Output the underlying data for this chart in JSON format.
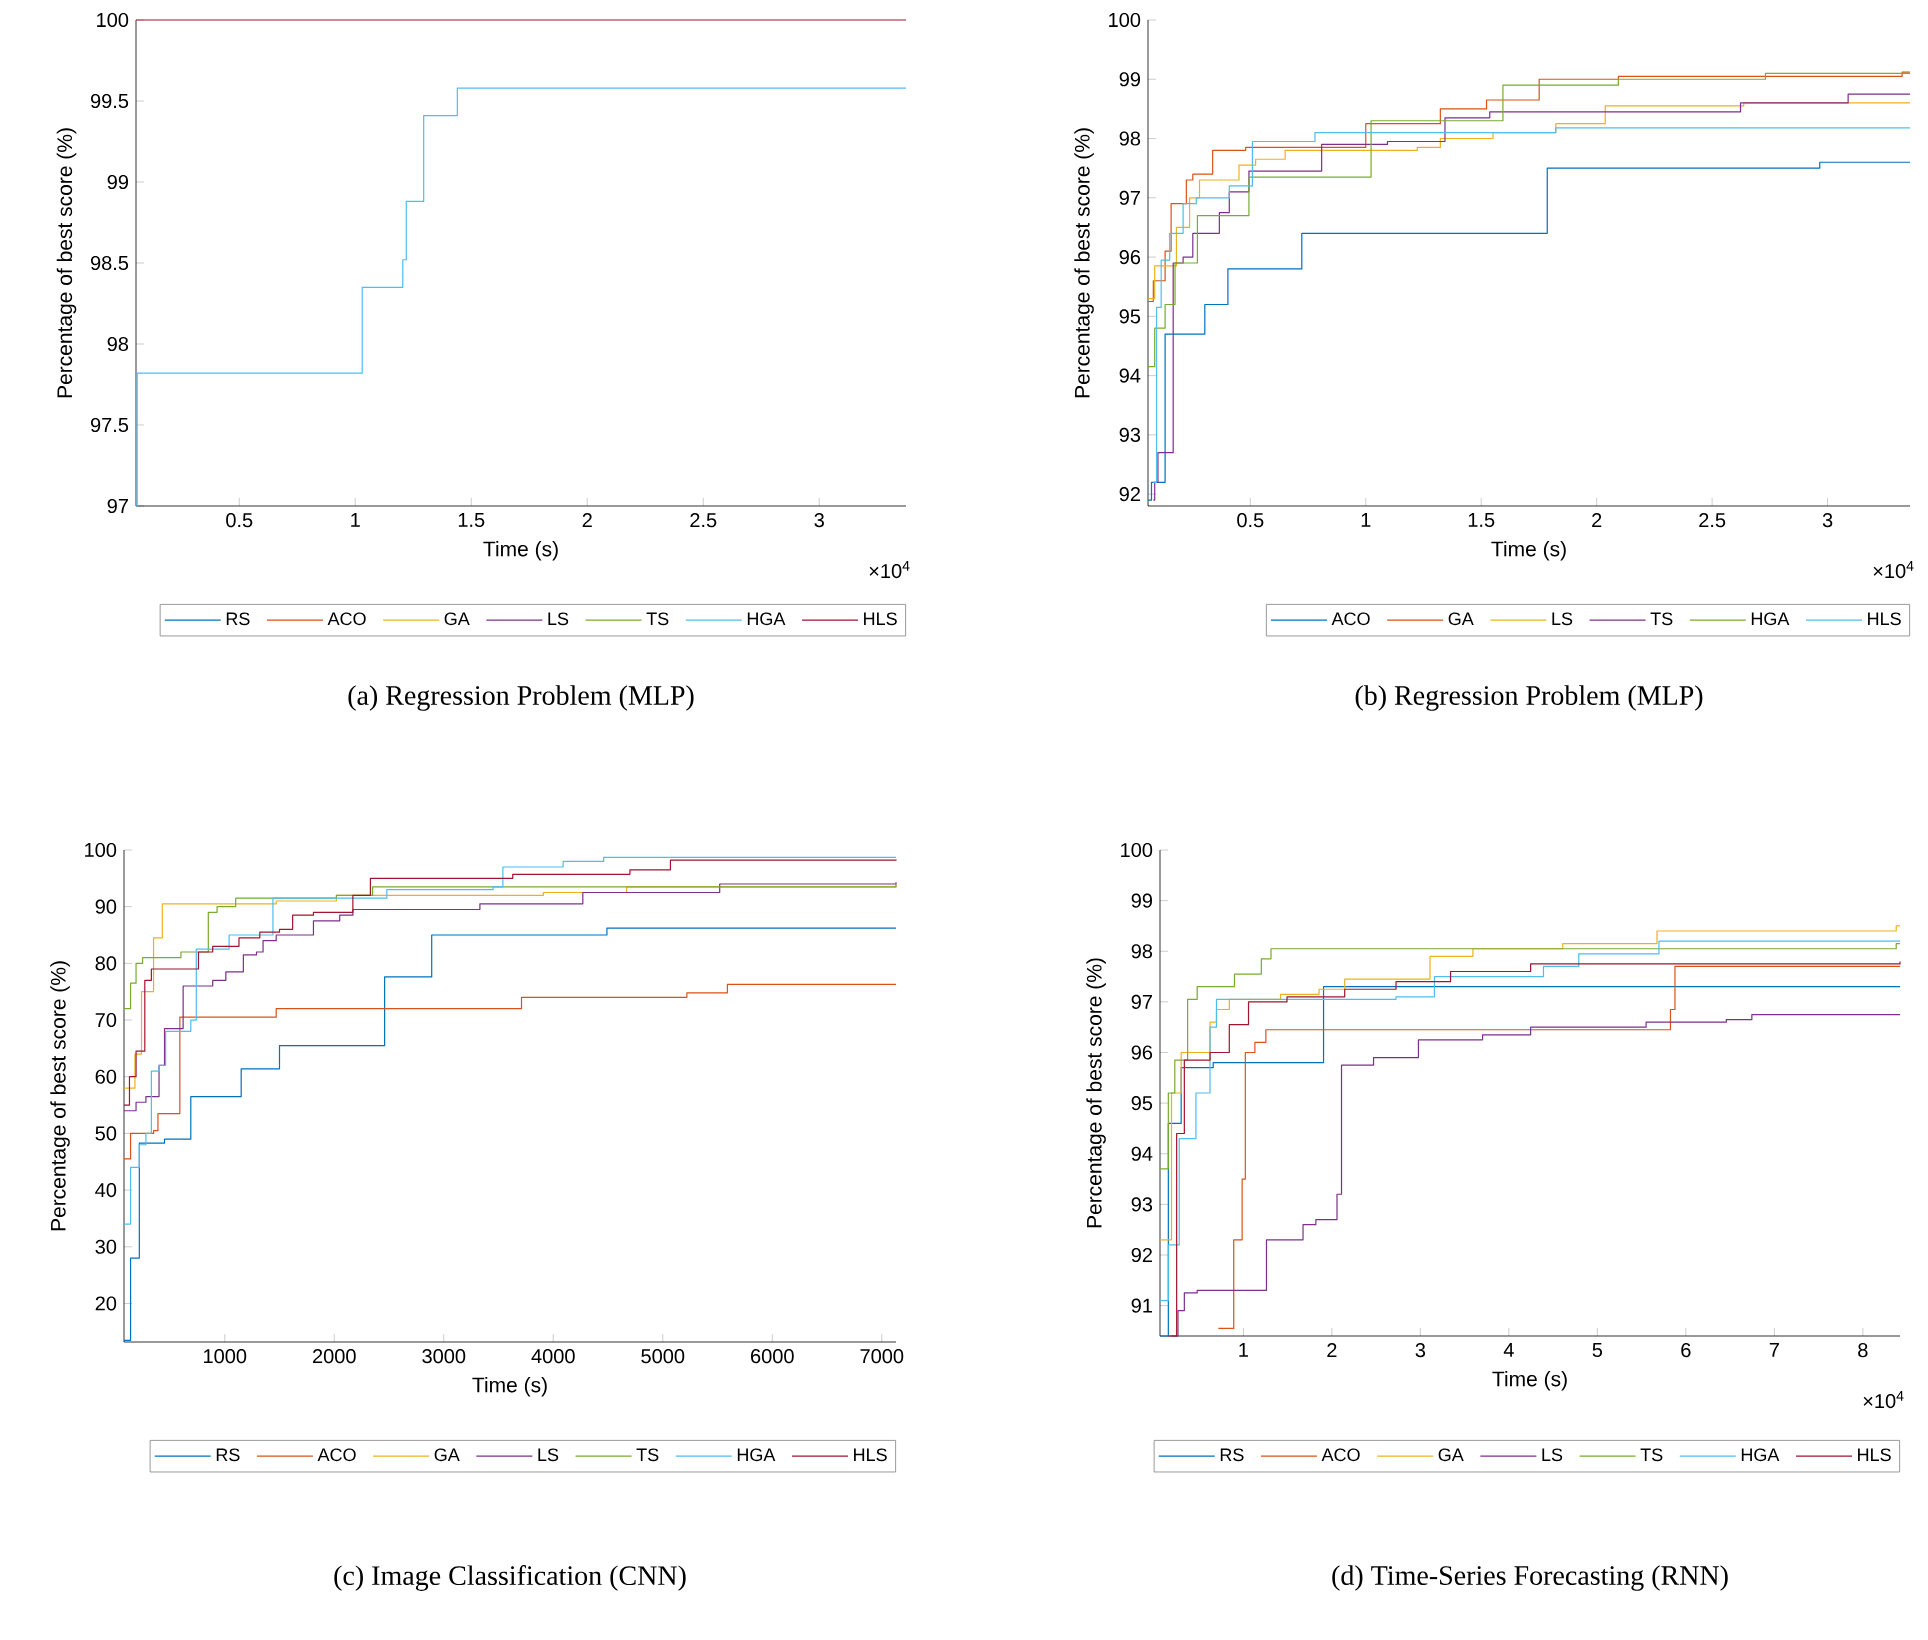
{
  "chart_data": [
    {
      "type": "step",
      "title": "(a) Regression Problem (MLP)",
      "xlabel": "Time (s)",
      "ylabel": "Percentage of best score (%)",
      "annotations": [
        "×10$^{4}$"
      ],
      "legend": "bottom",
      "xlim": [
        0.055,
        3.374
      ],
      "ylim": [
        97,
        100
      ],
      "xticks": [
        0.5,
        1,
        1.5,
        2,
        2.5,
        3
      ],
      "yticks": [
        97,
        97.5,
        98,
        98.5,
        99,
        99.5,
        100
      ],
      "series": [
        {
          "name": "RS",
          "color": "#0072bd"
        },
        {
          "name": "ACO",
          "color": "#d95319"
        },
        {
          "name": "GA",
          "color": "#edb120"
        },
        {
          "name": "LS",
          "color": "#7e2f8e"
        },
        {
          "name": "TS",
          "color": "#77ac30"
        },
        {
          "name": "HGA",
          "color": "#4dbeee",
          "x": [
            0.055,
            0.06,
            1.03,
            1.205,
            1.22,
            1.295,
            1.44,
            3.374
          ],
          "values": [
            97,
            97.82,
            98.35,
            98.52,
            98.88,
            99.41,
            99.58,
            99.58
          ]
        },
        {
          "name": "HLS",
          "color": "#a2142f",
          "x": [
            0.055,
            3.374
          ],
          "values": [
            100,
            100
          ]
        }
      ]
    },
    {
      "type": "step",
      "title": "(b) Regression Problem (MLP)",
      "xlabel": "Time (s)",
      "ylabel": "Percentage of best score (%)",
      "annotations": [
        "×10$^{4}$"
      ],
      "legend": "bottom",
      "xlim": [
        0.057,
        3.357
      ],
      "ylim": [
        91.8,
        100
      ],
      "xticks": [
        0.5,
        1,
        1.5,
        2,
        2.5,
        3
      ],
      "yticks": [
        92,
        93,
        94,
        95,
        96,
        97,
        98,
        99,
        100
      ],
      "series": [
        {
          "name": "ACO",
          "color": "#0072bd",
          "x": [
            0.057,
            0.072,
            0.131,
            0.303,
            0.403,
            0.723,
            1.786,
            2.966,
            3.357
          ],
          "values": [
            91.9,
            92.2,
            94.7,
            95.2,
            95.8,
            96.4,
            97.5,
            97.6,
            97.6
          ]
        },
        {
          "name": "GA",
          "color": "#d95319",
          "x": [
            0.057,
            0.08,
            0.131,
            0.157,
            0.223,
            0.251,
            0.337,
            0.48,
            1.0,
            1.323,
            1.523,
            1.751,
            2.094,
            3.323,
            3.357
          ],
          "values": [
            95.25,
            95.6,
            96.1,
            96.9,
            97.3,
            97.4,
            97.8,
            97.85,
            98.25,
            98.5,
            98.65,
            99.0,
            99.05,
            99.12,
            99.12
          ]
        },
        {
          "name": "LS",
          "color": "#edb120",
          "x": [
            0.057,
            0.086,
            0.18,
            0.237,
            0.28,
            0.451,
            0.523,
            0.651,
            1.223,
            1.323,
            1.551,
            1.823,
            2.037,
            2.637,
            3.357
          ],
          "values": [
            95.3,
            95.85,
            96.5,
            97.0,
            97.3,
            97.55,
            97.65,
            97.8,
            97.85,
            98.0,
            98.1,
            98.25,
            98.55,
            98.6,
            98.6
          ]
        },
        {
          "name": "TS",
          "color": "#7e2f8e",
          "x": [
            0.08,
            0.086,
            0.1,
            0.166,
            0.209,
            0.251,
            0.366,
            0.409,
            0.494,
            0.809,
            1.094,
            1.343,
            1.537,
            2.623,
            3.089,
            3.357
          ],
          "values": [
            91.9,
            92.2,
            92.7,
            95.9,
            96.0,
            96.4,
            96.75,
            97.1,
            97.45,
            97.9,
            97.95,
            98.35,
            98.45,
            98.6,
            98.75,
            98.75
          ]
        },
        {
          "name": "HGA",
          "color": "#77ac30",
          "x": [
            0.057,
            0.086,
            0.131,
            0.174,
            0.271,
            0.494,
            1.023,
            1.594,
            2.094,
            2.731,
            3.357
          ],
          "values": [
            94.15,
            94.8,
            95.2,
            95.9,
            96.7,
            97.35,
            98.3,
            98.9,
            99.0,
            99.1,
            99.1
          ]
        },
        {
          "name": "HLS",
          "color": "#4dbeee",
          "x": [
            0.08,
            0.094,
            0.114,
            0.151,
            0.209,
            0.266,
            0.409,
            0.509,
            0.78,
            1.823,
            3.357
          ],
          "values": [
            92.2,
            95.15,
            95.95,
            96.4,
            96.9,
            97.0,
            97.2,
            97.95,
            98.1,
            98.18,
            98.18
          ]
        }
      ]
    },
    {
      "type": "step",
      "title": "(c) Image Classification (CNN)",
      "xlabel": "Time (s)",
      "ylabel": "Percentage of best score (%)",
      "legend": "bottom",
      "xlim": [
        80,
        7130
      ],
      "ylim": [
        13.2,
        100
      ],
      "xticks": [
        1000,
        2000,
        3000,
        4000,
        5000,
        6000,
        7000
      ],
      "yticks": [
        20,
        30,
        40,
        50,
        60,
        70,
        80,
        90,
        100
      ],
      "series": [
        {
          "name": "RS",
          "color": "#0072bd",
          "x": [
            80,
            140,
            220,
            450,
            690,
            1150,
            1500,
            2460,
            2890,
            4490,
            7130
          ],
          "values": [
            13.5,
            28,
            48.3,
            49,
            56.5,
            61.4,
            65.5,
            77.6,
            85.0,
            86.2,
            86.2
          ]
        },
        {
          "name": "ACO",
          "color": "#d95319",
          "x": [
            80,
            140,
            350,
            390,
            590,
            1470,
            3710,
            5220,
            5590,
            7130
          ],
          "values": [
            45.5,
            50,
            50.5,
            53.5,
            70.5,
            72,
            74,
            74.8,
            76.3,
            76.3
          ]
        },
        {
          "name": "GA",
          "color": "#edb120",
          "x": [
            80,
            180,
            240,
            350,
            430,
            1470,
            2020,
            3910,
            4670,
            7130
          ],
          "values": [
            58,
            64,
            75,
            84.5,
            90.5,
            91,
            92,
            92.5,
            93.5,
            94.0
          ]
        },
        {
          "name": "LS",
          "color": "#7e2f8e",
          "x": [
            80,
            190,
            280,
            400,
            450,
            620,
            890,
            1010,
            1170,
            1290,
            1350,
            1470,
            1810,
            2050,
            2170,
            3330,
            4270,
            5520,
            7130
          ],
          "values": [
            54,
            55.5,
            56.5,
            62,
            68.5,
            76,
            77,
            78.5,
            81.5,
            82,
            84,
            85,
            87.5,
            88.5,
            89.5,
            90.5,
            92.5,
            94,
            94.3
          ]
        },
        {
          "name": "TS",
          "color": "#77ac30",
          "x": [
            80,
            140,
            190,
            250,
            600,
            850,
            930,
            1100,
            2020,
            2350,
            7130
          ],
          "values": [
            72,
            76.5,
            80,
            81,
            82,
            89,
            90,
            91.5,
            92,
            93.5,
            93.8
          ]
        },
        {
          "name": "HGA",
          "color": "#4dbeee",
          "x": [
            80,
            140,
            220,
            280,
            330,
            400,
            460,
            690,
            740,
            1040,
            1440,
            2480,
            3450,
            3540,
            4090,
            4460,
            7130
          ],
          "values": [
            34,
            44,
            48,
            50,
            61,
            62,
            68,
            70,
            82.5,
            85,
            91.5,
            93,
            93.5,
            97,
            98,
            98.7,
            98.7
          ]
        },
        {
          "name": "HLS",
          "color": "#a2142f",
          "x": [
            80,
            130,
            190,
            270,
            330,
            760,
            890,
            1130,
            1320,
            1500,
            1620,
            1810,
            2170,
            2330,
            3630,
            4700,
            5070,
            7130
          ],
          "values": [
            55,
            60,
            64.5,
            77,
            79,
            82,
            83,
            84.5,
            85.5,
            86,
            88.5,
            89,
            92,
            95,
            95.7,
            96.5,
            98.2,
            98.3
          ]
        }
      ]
    },
    {
      "type": "step",
      "title": "(d) Time-Series Forecasting (RNN)",
      "xlabel": "Time (s)",
      "ylabel": "Percentage of best score (%)",
      "annotations": [
        "×10$^{4}$"
      ],
      "legend": "bottom",
      "xlim": [
        0.058,
        8.42
      ],
      "ylim": [
        90.4,
        100
      ],
      "xticks": [
        1,
        2,
        3,
        4,
        5,
        6,
        7,
        8
      ],
      "yticks": [
        91,
        92,
        93,
        94,
        95,
        96,
        97,
        98,
        99,
        100
      ],
      "series": [
        {
          "name": "RS",
          "color": "#0072bd",
          "x": [
            0.058,
            0.152,
            0.297,
            0.659,
            1.906,
            8.42
          ],
          "values": [
            90.4,
            94.6,
            95.7,
            95.8,
            97.3,
            97.3
          ]
        },
        {
          "name": "ACO",
          "color": "#d95319",
          "x": [
            0.717,
            0.891,
            0.986,
            1.022,
            1.13,
            1.254,
            5.826,
            5.877,
            8.42
          ],
          "values": [
            90.55,
            92.3,
            93.5,
            96.0,
            96.2,
            96.45,
            96.85,
            97.7,
            97.7
          ]
        },
        {
          "name": "GA",
          "color": "#edb120",
          "x": [
            0.058,
            0.188,
            0.297,
            0.623,
            0.696,
            0.841,
            1.42,
            1.855,
            2.145,
            3.109,
            3.594,
            4.609,
            5.674,
            8.377,
            8.42
          ],
          "values": [
            92.3,
            95.2,
            96.0,
            96.6,
            96.85,
            97.05,
            97.15,
            97.25,
            97.45,
            97.9,
            98.05,
            98.15,
            98.4,
            98.5,
            98.5
          ]
        },
        {
          "name": "LS",
          "color": "#7e2f8e",
          "x": [
            0.188,
            0.261,
            0.333,
            0.478,
            1.261,
            1.674,
            1.819,
            2.058,
            2.109,
            2.471,
            2.978,
            3.703,
            4.246,
            5.551,
            6.457,
            6.746,
            8.42
          ],
          "values": [
            90.4,
            90.9,
            91.25,
            91.3,
            92.3,
            92.6,
            92.7,
            93.2,
            95.75,
            95.9,
            96.25,
            96.35,
            96.5,
            96.6,
            96.65,
            96.75,
            96.75
          ]
        },
        {
          "name": "TS",
          "color": "#77ac30",
          "x": [
            0.058,
            0.152,
            0.225,
            0.37,
            0.478,
            0.899,
            1.203,
            1.312,
            8.377,
            8.42
          ],
          "values": [
            93.7,
            95.2,
            95.85,
            97.05,
            97.3,
            97.55,
            97.85,
            98.05,
            98.15,
            98.15
          ]
        },
        {
          "name": "HGA",
          "color": "#4dbeee",
          "x": [
            0.058,
            0.152,
            0.275,
            0.464,
            0.623,
            0.696,
            2.725,
            3.159,
            4.391,
            4.79,
            5.696,
            8.42
          ],
          "values": [
            91.1,
            92.2,
            94.3,
            95.2,
            96.5,
            97.05,
            97.1,
            97.5,
            97.7,
            97.95,
            98.2,
            98.2
          ]
        },
        {
          "name": "HLS",
          "color": "#a2142f",
          "x": [
            0.152,
            0.246,
            0.333,
            0.623,
            0.841,
            1.058,
            1.493,
            2.145,
            2.725,
            3.341,
            4.246,
            8.42
          ],
          "values": [
            90.4,
            94.4,
            95.85,
            96.0,
            96.55,
            97.0,
            97.1,
            97.25,
            97.4,
            97.6,
            97.75,
            97.8
          ]
        }
      ]
    }
  ]
}
